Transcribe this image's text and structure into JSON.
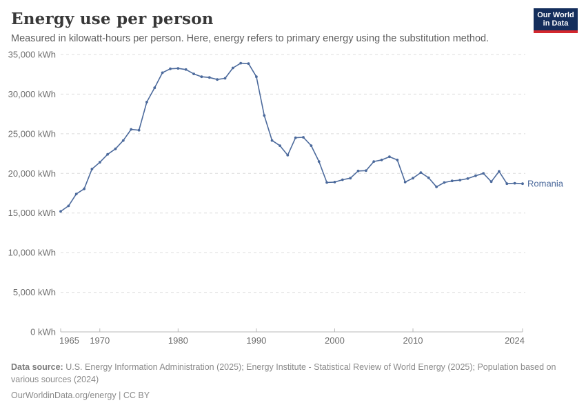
{
  "header": {
    "title": "Energy use per person",
    "subtitle": "Measured in kilowatt-hours per person. Here, energy refers to primary energy using the substitution method.",
    "logo_line1": "Our World",
    "logo_line2": "in Data",
    "logo_bg_color": "#142e5c",
    "logo_stripe_color": "#d4272e"
  },
  "chart_data": {
    "type": "line",
    "title": "Energy use per person",
    "xlabel": "",
    "ylabel": "kWh per person",
    "xlim": [
      1965,
      2024
    ],
    "ylim": [
      0,
      35000
    ],
    "grid": "dashed-horizontal",
    "legend_position": "end-of-line",
    "xticks": [
      1965,
      1970,
      1980,
      1990,
      2000,
      2010,
      2024
    ],
    "xtick_labels": [
      "1965",
      "1970",
      "1980",
      "1990",
      "2000",
      "2010",
      "2024"
    ],
    "yticks": [
      0,
      5000,
      10000,
      15000,
      20000,
      25000,
      30000,
      35000
    ],
    "ytick_labels": [
      "0 kWh",
      "5,000 kWh",
      "10,000 kWh",
      "15,000 kWh",
      "20,000 kWh",
      "25,000 kWh",
      "30,000 kWh",
      "35,000 kWh"
    ],
    "series": [
      {
        "name": "Romania",
        "color": "#4C6A9C",
        "x": [
          1965,
          1966,
          1967,
          1968,
          1969,
          1970,
          1971,
          1972,
          1973,
          1974,
          1975,
          1976,
          1977,
          1978,
          1979,
          1980,
          1981,
          1982,
          1983,
          1984,
          1985,
          1986,
          1987,
          1988,
          1989,
          1990,
          1991,
          1992,
          1993,
          1994,
          1995,
          1996,
          1997,
          1998,
          1999,
          2000,
          2001,
          2002,
          2003,
          2004,
          2005,
          2006,
          2007,
          2008,
          2009,
          2010,
          2011,
          2012,
          2013,
          2014,
          2015,
          2016,
          2017,
          2018,
          2019,
          2020,
          2021,
          2022,
          2023,
          2024
        ],
        "values": [
          15200,
          15900,
          17400,
          18050,
          20550,
          21400,
          22400,
          23100,
          24150,
          25550,
          25450,
          29000,
          30800,
          32700,
          33200,
          33250,
          33100,
          32550,
          32200,
          32100,
          31850,
          32000,
          33300,
          33900,
          33850,
          32200,
          27300,
          24150,
          23500,
          22300,
          24500,
          24550,
          23500,
          21500,
          18850,
          18900,
          19200,
          19400,
          20300,
          20350,
          21500,
          21700,
          22100,
          21700,
          18900,
          19400,
          20100,
          19450,
          18300,
          18850,
          19050,
          19150,
          19350,
          19700,
          20000,
          18950,
          20250,
          18700,
          18750,
          18700
        ]
      }
    ],
    "axis_color": "#b8b8b8",
    "grid_color": "#dcdcdc",
    "tick_label_color": "#6e6e6e"
  },
  "footer": {
    "source_label": "Data source:",
    "source_text": "U.S. Energy Information Administration (2025); Energy Institute - Statistical Review of World Energy (2025); Population based on various sources (2024)",
    "link_text": "OurWorldinData.org/energy",
    "separator": "|",
    "license": "CC BY"
  }
}
